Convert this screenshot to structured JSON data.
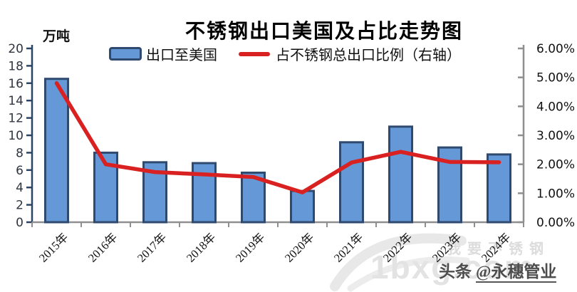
{
  "watermark": {
    "brand_cn": "我要不锈钢",
    "brand_site": "1bxg.com",
    "credit_prefix": "头条",
    "credit_handle": "@永穗管业"
  },
  "colors": {
    "bar_fill": "#6498d6",
    "bar_border": "#2f4a6e",
    "line_red": "#d92121",
    "axis_navy": "#2c4565",
    "axis_gray": "#8f8f8f",
    "tick_left_color": "#2f3540",
    "tick_right_color": "#121212"
  },
  "chart_data": {
    "type": "combo",
    "title": "不锈钢出口美国及占比走势图",
    "legend_position": "top",
    "grid": false,
    "categories": [
      "2015年",
      "2016年",
      "2017年",
      "2018年",
      "2019年",
      "2020年",
      "2021年",
      "2022年",
      "2023年",
      "2024年"
    ],
    "series": [
      {
        "name": "出口至美国",
        "type": "bar",
        "axis": "left",
        "unit": "万吨",
        "values": [
          16.5,
          8.0,
          6.9,
          6.8,
          5.7,
          3.6,
          9.2,
          11.0,
          8.6,
          7.8
        ]
      },
      {
        "name": "占不锈钢总出口比例（右轴）",
        "type": "line",
        "axis": "right",
        "unit": "%",
        "values": [
          4.8,
          2.0,
          1.73,
          1.65,
          1.56,
          1.03,
          2.06,
          2.43,
          2.08,
          2.07
        ]
      }
    ],
    "left_axis": {
      "unit_label": "万吨",
      "min": 0,
      "max": 20,
      "step": 2,
      "tick_labels": [
        "0",
        "2",
        "4",
        "6",
        "8",
        "10",
        "12",
        "14",
        "16",
        "18",
        "20"
      ]
    },
    "right_axis": {
      "min": 0,
      "max": 6,
      "step": 1,
      "tick_labels": [
        "0.00%",
        "1.00%",
        "2.00%",
        "3.00%",
        "4.00%",
        "5.00%",
        "6.00%"
      ]
    }
  }
}
